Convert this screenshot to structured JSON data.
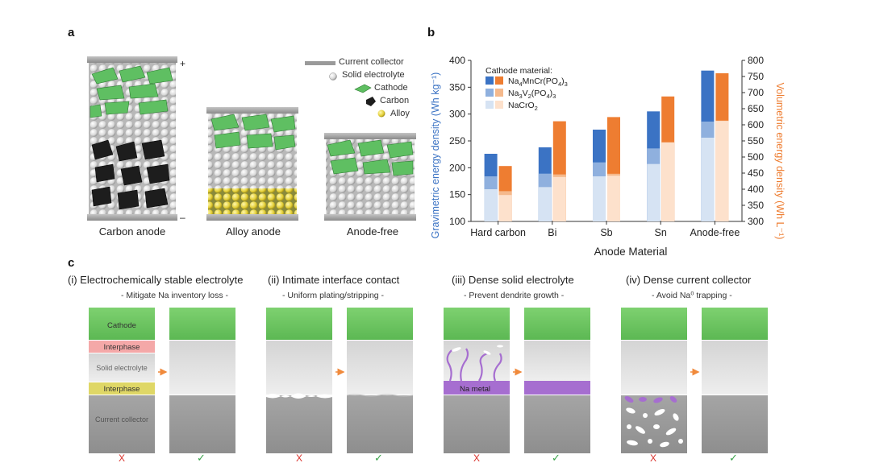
{
  "panel_a": {
    "label": "a",
    "cells": [
      {
        "caption": "Carbon anode",
        "plus": "+",
        "minus": "–"
      },
      {
        "caption": "Alloy anode"
      },
      {
        "caption": "Anode-free"
      }
    ],
    "legend": [
      {
        "name": "Current collector",
        "icon": "current-collector-icon"
      },
      {
        "name": "Solid electrolyte",
        "icon": "solid-electrolyte-icon"
      },
      {
        "name": "Cathode",
        "icon": "cathode-icon"
      },
      {
        "name": "Carbon",
        "icon": "carbon-icon"
      },
      {
        "name": "Alloy",
        "icon": "alloy-icon"
      }
    ]
  },
  "panel_b": {
    "label": "b",
    "chart_data": {
      "type": "bar",
      "xlabel": "Anode Material",
      "ylabel_left": "Gravimetric energy density (Wh kg⁻¹)",
      "ylabel_right": "Volumetric energy density (Wh L⁻¹)",
      "ylim_left": [
        100,
        400
      ],
      "ylim_right": [
        300,
        800
      ],
      "yticks_left": [
        100,
        150,
        200,
        250,
        300,
        350,
        400
      ],
      "yticks_right": [
        300,
        350,
        400,
        450,
        500,
        550,
        600,
        650,
        700,
        750,
        800
      ],
      "legend_title": "Cathode material:",
      "legend": [
        "Na4MnCr(PO4)3",
        "Na3V2(PO4)3",
        "NaCrO2"
      ],
      "categories": [
        "Hard carbon",
        "Bi",
        "Sb",
        "Sn",
        "Anode-free"
      ],
      "gravimetric": {
        "Na4MnCr(PO4)3": [
          226,
          238,
          271,
          305,
          381
        ],
        "Na3V2(PO4)3": [
          184,
          189,
          210,
          236,
          286
        ],
        "NaCrO2": [
          160,
          164,
          184,
          207,
          256
        ]
      },
      "volumetric": {
        "Na4MnCr(PO4)3": [
          472,
          611,
          624,
          688,
          760
        ],
        "Na3V2(PO4)3": [
          394,
          446,
          448,
          546,
          613
        ],
        "NaCrO2": [
          382,
          438,
          442,
          545,
          612
        ]
      },
      "colors": {
        "grav": [
          "#3b73c4",
          "#8fb0de",
          "#d6e3f3"
        ],
        "vol": [
          "#ee7d31",
          "#f5b98c",
          "#fde1cc"
        ]
      }
    }
  },
  "panel_c": {
    "label": "c",
    "items": [
      {
        "title": "(i) Electrochemically stable electrolyte",
        "subtitle": "- Mitigate Na inventory loss -",
        "bad": "X",
        "good": "✓"
      },
      {
        "title": "(ii) Intimate interface contact",
        "subtitle": "- Uniform plating/stripping -",
        "bad": "X",
        "good": "✓"
      },
      {
        "title": "(iii) Dense solid electrolyte",
        "subtitle": "- Prevent dendrite growth -",
        "bad": "X",
        "good": "✓"
      },
      {
        "title": "(iv) Dense current collector",
        "subtitle": "- Avoid Na⁰ trapping -",
        "bad": "X",
        "good": "✓"
      }
    ],
    "stack_labels": {
      "cathode": "Cathode",
      "interphase": "Interphase",
      "solid_electrolyte": "Solid electrolyte",
      "current_collector": "Current collector",
      "na_metal": "Na metal"
    },
    "colors": {
      "cathode": "#6cc35e",
      "interphase_top": "#f4a8a8",
      "interphase_bottom": "#dfd766",
      "electrolyte": "#e6e6e6",
      "collector": "#9a9a9a",
      "na_metal": "#a66ed0",
      "arrow": "#f08a3c"
    }
  }
}
